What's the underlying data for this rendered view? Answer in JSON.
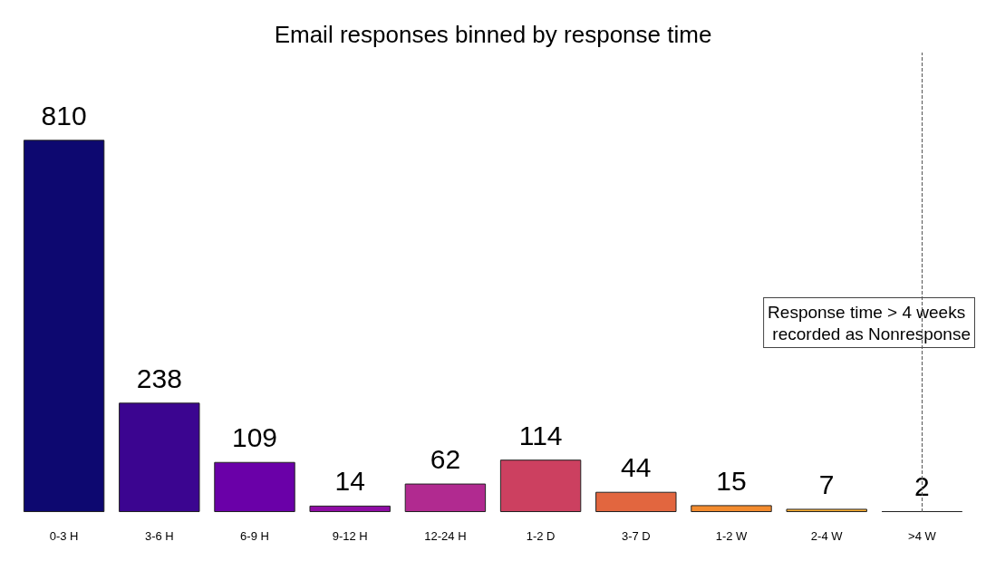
{
  "chart_data": {
    "type": "bar",
    "title": "Email responses binned by response time",
    "categories": [
      "0-3 H",
      "3-6 H",
      "6-9 H",
      "9-12 H",
      "12-24 H",
      "1-2 D",
      "3-7 D",
      "1-2 W",
      "2-4 W",
      ">4 W"
    ],
    "values": [
      810,
      238,
      109,
      14,
      62,
      114,
      44,
      15,
      7,
      2
    ],
    "colors": [
      "#0d0870",
      "#3b0590",
      "#6a00a8",
      "#8f0da4",
      "#b12a90",
      "#cc4060",
      "#e2663f",
      "#f38b2e",
      "#fcb035",
      "#b0b040"
    ],
    "data_labels": true,
    "annotations": [
      "Response time > 4 weeks\n recorded as Nonresponse"
    ]
  }
}
